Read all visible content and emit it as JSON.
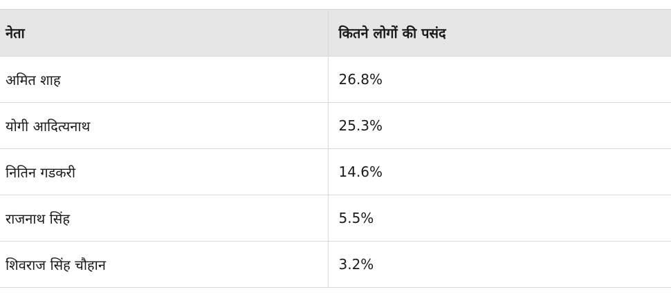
{
  "table": {
    "headers": [
      "नेता",
      "कितने लोगों की पसंद"
    ],
    "rows": [
      [
        "अमित शाह",
        "26.8%"
      ],
      [
        "योगी आदित्यनाथ",
        "25.3%"
      ],
      [
        "नितिन गडकरी",
        "14.6%"
      ],
      [
        "राजनाथ सिंह",
        "5.5%"
      ],
      [
        "शिवराज सिंह चौहान",
        "3.2%"
      ]
    ]
  }
}
